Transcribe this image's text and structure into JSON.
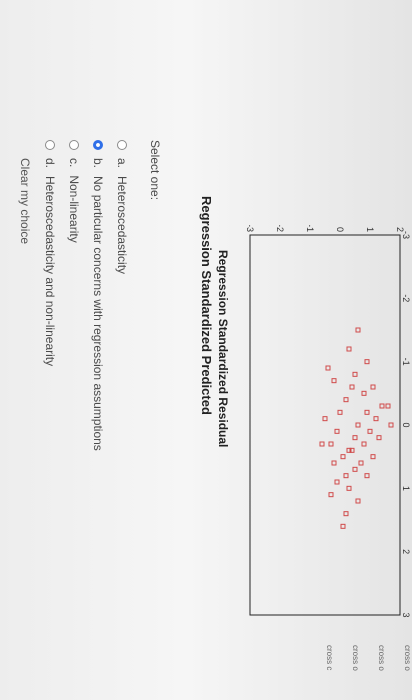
{
  "chart": {
    "title": "Regression Standardized Predicted",
    "xlabel": "Regression Standardized Residual",
    "y_ticks": [
      "2",
      "1",
      "0",
      "-1",
      "-2",
      "-3"
    ],
    "x_ticks": [
      "-3",
      "-2",
      "-1",
      "0",
      "1",
      "2",
      "3"
    ]
  },
  "chart_data": {
    "type": "scatter",
    "title": "Regression Standardized Predicted",
    "xlabel": "Regression Standardized Residual",
    "ylabel": "",
    "xlim": [
      -3,
      3
    ],
    "ylim": [
      -3,
      2
    ],
    "marker_color": "#d04a4a",
    "x": [
      -1.5,
      -1.2,
      -1.0,
      -0.8,
      -0.6,
      -0.5,
      -0.4,
      -0.3,
      -0.2,
      -0.1,
      0.0,
      0.1,
      0.2,
      0.3,
      0.4,
      0.5,
      0.6,
      0.8,
      1.0,
      1.2,
      1.4,
      1.6,
      -0.7,
      -0.2,
      0.1,
      0.3,
      0.5,
      -0.9,
      0.2,
      0.4,
      0.6,
      -0.3,
      0.0,
      0.7,
      0.9,
      -0.6,
      -0.1,
      0.3,
      0.8,
      1.1
    ],
    "y": [
      0.6,
      0.3,
      0.9,
      0.5,
      1.1,
      0.8,
      0.2,
      1.4,
      0.9,
      1.2,
      0.6,
      1.0,
      1.3,
      0.8,
      0.4,
      1.1,
      0.7,
      0.9,
      0.3,
      0.6,
      0.2,
      0.1,
      -0.2,
      0.0,
      -0.1,
      -0.3,
      0.1,
      -0.4,
      0.5,
      0.3,
      -0.2,
      1.6,
      1.7,
      0.5,
      -0.1,
      0.4,
      -0.5,
      -0.6,
      0.2,
      -0.3
    ]
  },
  "quiz": {
    "prompt": "Select one:",
    "options": [
      {
        "letter": "a.",
        "text": "Heteroscedasticity",
        "selected": false
      },
      {
        "letter": "b.",
        "text": "No particular concerns with regression assumptions",
        "selected": true
      },
      {
        "letter": "c.",
        "text": "Non-linearity",
        "selected": false
      },
      {
        "letter": "d.",
        "text": "Heteroscedasticity and non-linearity",
        "selected": false
      }
    ],
    "clear_label": "Clear my choice"
  },
  "side_labels": [
    "cross o",
    "cross o",
    "cross o",
    "cross c"
  ]
}
